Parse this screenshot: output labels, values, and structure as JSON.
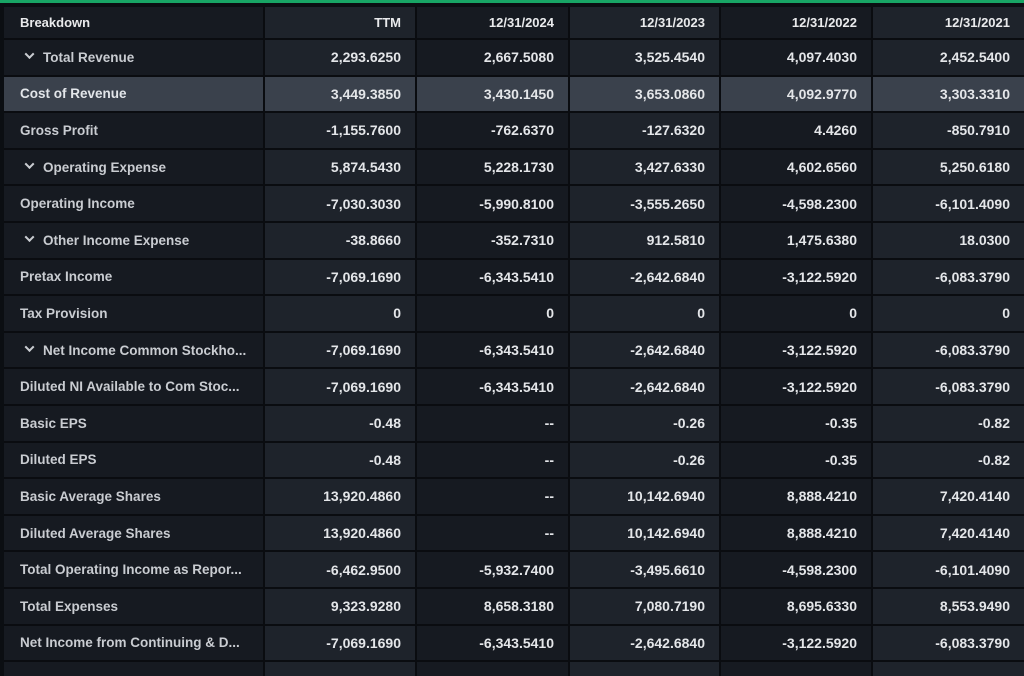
{
  "colors": {
    "accent": "#18a565",
    "page-bg": "#0b0e12",
    "col-dark": "#161a21",
    "col-light": "#1e232b",
    "row-highlight": "#3a414c",
    "border": "#0a0c10",
    "header-text": "#e9eaec",
    "label-text": "#c9ccd1",
    "value-text": "#e4e6e9"
  },
  "table": {
    "header": {
      "breakdown": "Breakdown",
      "periods": [
        "TTM",
        "12/31/2024",
        "12/31/2023",
        "12/31/2022",
        "12/31/2021"
      ]
    },
    "rows": [
      {
        "label": "Total Revenue",
        "expandable": true,
        "highlighted": false,
        "values": [
          "2,293.6250",
          "2,667.5080",
          "3,525.4540",
          "4,097.4030",
          "2,452.5400"
        ]
      },
      {
        "label": "Cost of Revenue",
        "expandable": false,
        "highlighted": true,
        "values": [
          "3,449.3850",
          "3,430.1450",
          "3,653.0860",
          "4,092.9770",
          "3,303.3310"
        ]
      },
      {
        "label": "Gross Profit",
        "expandable": false,
        "highlighted": false,
        "values": [
          "-1,155.7600",
          "-762.6370",
          "-127.6320",
          "4.4260",
          "-850.7910"
        ]
      },
      {
        "label": "Operating Expense",
        "expandable": true,
        "highlighted": false,
        "values": [
          "5,874.5430",
          "5,228.1730",
          "3,427.6330",
          "4,602.6560",
          "5,250.6180"
        ]
      },
      {
        "label": "Operating Income",
        "expandable": false,
        "highlighted": false,
        "values": [
          "-7,030.3030",
          "-5,990.8100",
          "-3,555.2650",
          "-4,598.2300",
          "-6,101.4090"
        ]
      },
      {
        "label": "Other Income Expense",
        "expandable": true,
        "highlighted": false,
        "values": [
          "-38.8660",
          "-352.7310",
          "912.5810",
          "1,475.6380",
          "18.0300"
        ]
      },
      {
        "label": "Pretax Income",
        "expandable": false,
        "highlighted": false,
        "values": [
          "-7,069.1690",
          "-6,343.5410",
          "-2,642.6840",
          "-3,122.5920",
          "-6,083.3790"
        ]
      },
      {
        "label": "Tax Provision",
        "expandable": false,
        "highlighted": false,
        "values": [
          "0",
          "0",
          "0",
          "0",
          "0"
        ]
      },
      {
        "label": "Net Income Common Stockho...",
        "expandable": true,
        "highlighted": false,
        "values": [
          "-7,069.1690",
          "-6,343.5410",
          "-2,642.6840",
          "-3,122.5920",
          "-6,083.3790"
        ]
      },
      {
        "label": "Diluted NI Available to Com Stoc...",
        "expandable": false,
        "highlighted": false,
        "values": [
          "-7,069.1690",
          "-6,343.5410",
          "-2,642.6840",
          "-3,122.5920",
          "-6,083.3790"
        ]
      },
      {
        "label": "Basic EPS",
        "expandable": false,
        "highlighted": false,
        "values": [
          "-0.48",
          "--",
          "-0.26",
          "-0.35",
          "-0.82"
        ]
      },
      {
        "label": "Diluted EPS",
        "expandable": false,
        "highlighted": false,
        "values": [
          "-0.48",
          "--",
          "-0.26",
          "-0.35",
          "-0.82"
        ]
      },
      {
        "label": "Basic Average Shares",
        "expandable": false,
        "highlighted": false,
        "values": [
          "13,920.4860",
          "--",
          "10,142.6940",
          "8,888.4210",
          "7,420.4140"
        ]
      },
      {
        "label": "Diluted Average Shares",
        "expandable": false,
        "highlighted": false,
        "values": [
          "13,920.4860",
          "--",
          "10,142.6940",
          "8,888.4210",
          "7,420.4140"
        ]
      },
      {
        "label": "Total Operating Income as Repor...",
        "expandable": false,
        "highlighted": false,
        "values": [
          "-6,462.9500",
          "-5,932.7400",
          "-3,495.6610",
          "-4,598.2300",
          "-6,101.4090"
        ]
      },
      {
        "label": "Total Expenses",
        "expandable": false,
        "highlighted": false,
        "values": [
          "9,323.9280",
          "8,658.3180",
          "7,080.7190",
          "8,695.6330",
          "8,553.9490"
        ]
      },
      {
        "label": "Net Income from Continuing & D...",
        "expandable": false,
        "highlighted": false,
        "values": [
          "-7,069.1690",
          "-6,343.5410",
          "-2,642.6840",
          "-3,122.5920",
          "-6,083.3790"
        ]
      }
    ]
  }
}
